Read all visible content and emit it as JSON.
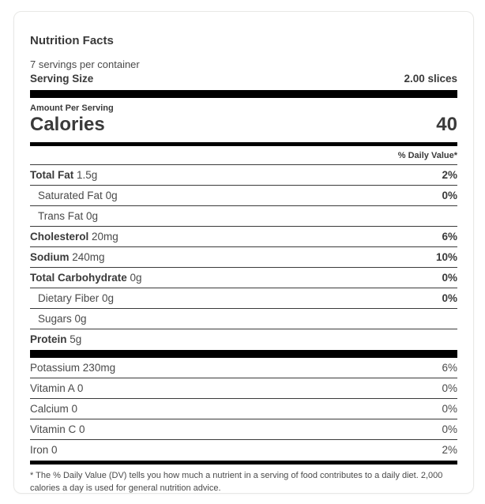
{
  "colors": {
    "bar": "#000000",
    "text_primary": "#3a3a3a",
    "text_secondary": "#4a4a4a",
    "card_border": "#e8e8e6",
    "card_background": "#ffffff"
  },
  "label": {
    "title": "Nutrition Facts",
    "servings_per_container": "7 servings per container",
    "serving_size_label": "Serving Size",
    "serving_size_value": "2.00 slices",
    "amount_per_serving": "Amount Per Serving",
    "calories_label": "Calories",
    "calories_value": "40",
    "daily_value_header": "% Daily Value*",
    "nutrients": [
      {
        "name": "Total Fat",
        "amount": "1.5g",
        "dv": "2%"
      },
      {
        "name": "Saturated Fat",
        "amount": "0g",
        "dv": "0%"
      },
      {
        "name": "Trans Fat",
        "amount": "0g",
        "dv": ""
      },
      {
        "name": "Cholesterol",
        "amount": "20mg",
        "dv": "6%"
      },
      {
        "name": "Sodium",
        "amount": "240mg",
        "dv": "10%"
      },
      {
        "name": "Total Carbohydrate",
        "amount": "0g",
        "dv": "0%"
      },
      {
        "name": "Dietary Fiber",
        "amount": "0g",
        "dv": "0%"
      },
      {
        "name": "Sugars",
        "amount": "0g",
        "dv": ""
      },
      {
        "name": "Protein",
        "amount": "5g",
        "dv": ""
      }
    ],
    "micronutrients": [
      {
        "name": "Potassium",
        "amount": "230mg",
        "dv": "6%"
      },
      {
        "name": "Vitamin A",
        "amount": "0",
        "dv": "0%"
      },
      {
        "name": "Calcium",
        "amount": "0",
        "dv": "0%"
      },
      {
        "name": "Vitamin C",
        "amount": "0",
        "dv": "0%"
      },
      {
        "name": "Iron",
        "amount": "0",
        "dv": "2%"
      }
    ],
    "footnote": "* The % Daily Value (DV) tells you how much a nutrient in a serving of food contributes to a daily diet. 2,000 calories a day is used for general nutrition advice."
  }
}
